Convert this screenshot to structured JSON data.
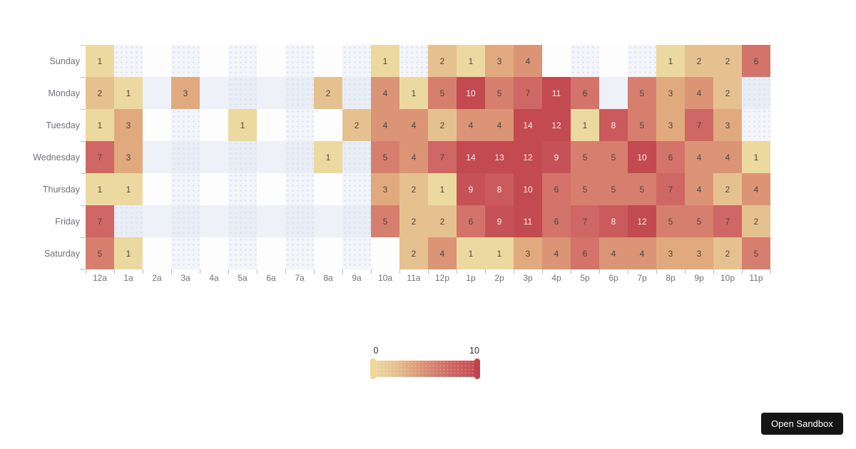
{
  "chart_data": {
    "type": "heatmap",
    "x_categories": [
      "12a",
      "1a",
      "2a",
      "3a",
      "4a",
      "5a",
      "6a",
      "7a",
      "8a",
      "9a",
      "10a",
      "11a",
      "12p",
      "1p",
      "2p",
      "3p",
      "4p",
      "5p",
      "6p",
      "7p",
      "8p",
      "9p",
      "10p",
      "11p"
    ],
    "y_categories": [
      "Sunday",
      "Monday",
      "Tuesday",
      "Wednesday",
      "Thursday",
      "Friday",
      "Saturday"
    ],
    "values": [
      [
        1,
        null,
        null,
        null,
        null,
        null,
        null,
        null,
        null,
        null,
        1,
        null,
        2,
        1,
        3,
        4,
        null,
        null,
        null,
        null,
        1,
        2,
        2,
        6
      ],
      [
        2,
        1,
        null,
        3,
        null,
        null,
        null,
        null,
        2,
        null,
        4,
        1,
        5,
        10,
        5,
        7,
        11,
        6,
        null,
        5,
        3,
        4,
        2,
        null
      ],
      [
        1,
        3,
        null,
        null,
        null,
        1,
        null,
        null,
        null,
        2,
        4,
        4,
        2,
        4,
        4,
        14,
        12,
        1,
        8,
        5,
        3,
        7,
        3,
        null
      ],
      [
        7,
        3,
        null,
        null,
        null,
        null,
        null,
        null,
        1,
        null,
        5,
        4,
        7,
        14,
        13,
        12,
        9,
        5,
        5,
        10,
        6,
        4,
        4,
        1
      ],
      [
        1,
        1,
        null,
        null,
        null,
        null,
        null,
        null,
        null,
        null,
        3,
        2,
        1,
        9,
        8,
        10,
        6,
        5,
        5,
        5,
        7,
        4,
        2,
        4
      ],
      [
        7,
        null,
        null,
        null,
        null,
        null,
        null,
        null,
        null,
        null,
        5,
        2,
        2,
        6,
        9,
        11,
        6,
        7,
        8,
        12,
        5,
        5,
        7,
        2
      ],
      [
        5,
        1,
        null,
        null,
        null,
        null,
        null,
        null,
        null,
        null,
        null,
        2,
        4,
        1,
        1,
        3,
        4,
        6,
        4,
        4,
        3,
        3,
        2,
        5
      ]
    ],
    "value_range": [
      0,
      10
    ],
    "patterned_values": [
      8,
      9
    ],
    "light_text_threshold": 8,
    "colors": {
      "scale": {
        "1": "#ecd9a0",
        "2": "#e6c190",
        "3": "#e1aa7e",
        "4": "#dc9476",
        "5": "#d77f6e",
        "6": "#d37369",
        "7": "#cf6764",
        "8": "#cb5a5c",
        "9": "#c65257",
        "10": "#c24a50"
      },
      "text_dark": "#4a4542",
      "text_light": "#f6ecea"
    },
    "legend_position": "bottom-center",
    "grid": "checkerboard-background"
  },
  "legend": {
    "min_label": "0",
    "max_label": "10"
  },
  "sandbox_button": {
    "label": "Open Sandbox"
  }
}
